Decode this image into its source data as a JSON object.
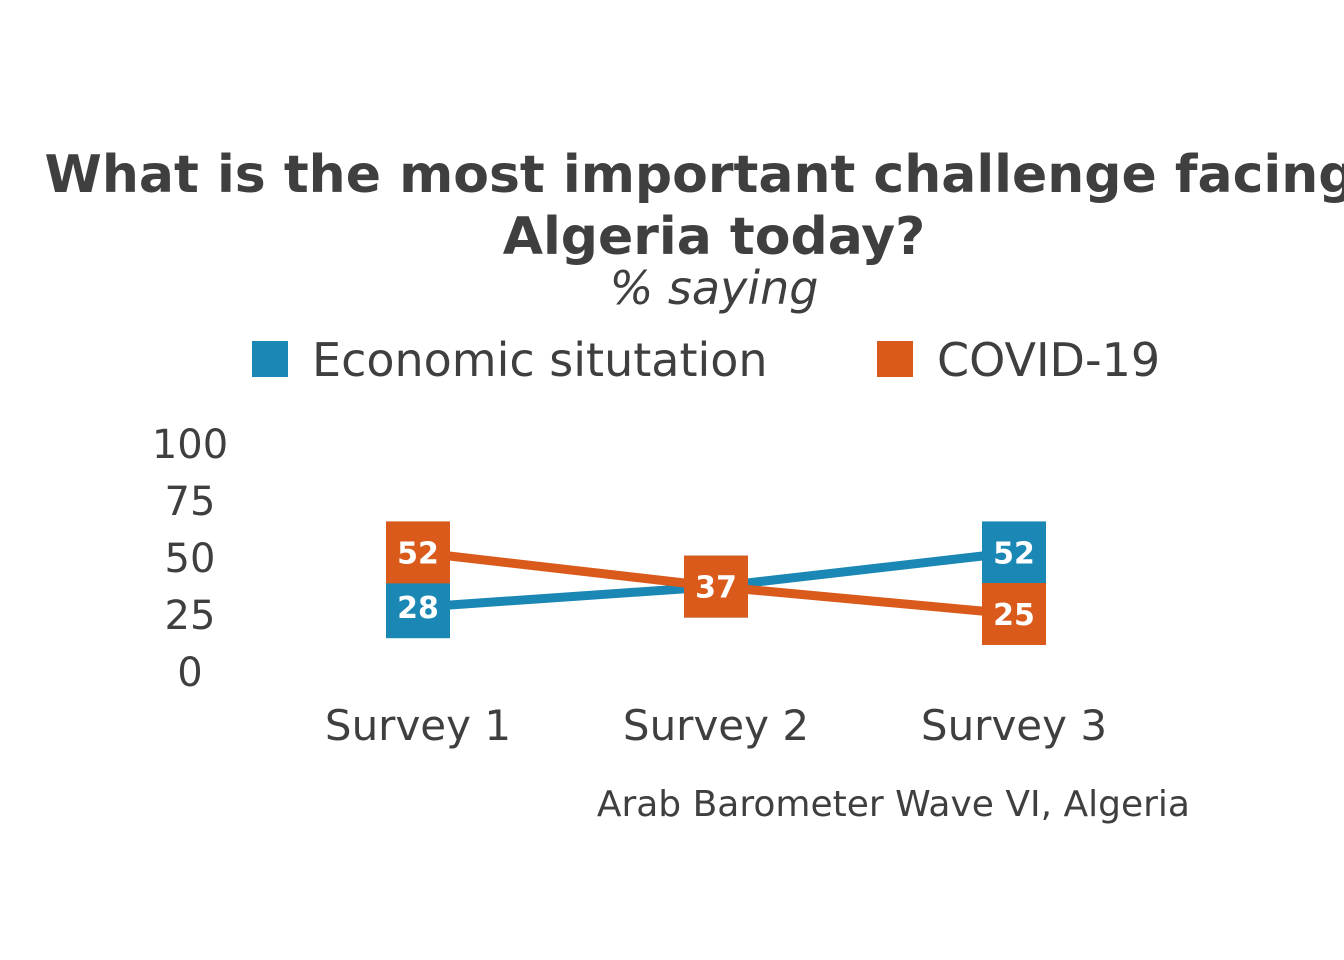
{
  "chart_data": {
    "type": "line",
    "title_line1": "What is the most important challenge facing",
    "title_line2": "Algeria today?",
    "subtitle": "% saying",
    "categories": [
      "Survey 1",
      "Survey 2",
      "Survey 3"
    ],
    "series": [
      {
        "name": "Economic situtation",
        "color": "#1a87b5",
        "values": [
          28,
          37,
          52
        ]
      },
      {
        "name": "COVID-19",
        "color": "#d95a1b",
        "values": [
          52,
          37,
          25
        ]
      }
    ],
    "yticks": [
      "100",
      "75",
      "50",
      "25",
      "0"
    ],
    "ylim": [
      0,
      100
    ],
    "grid": false,
    "legend_position": "top",
    "caption": "Arab Barometer Wave VI, Algeria"
  }
}
